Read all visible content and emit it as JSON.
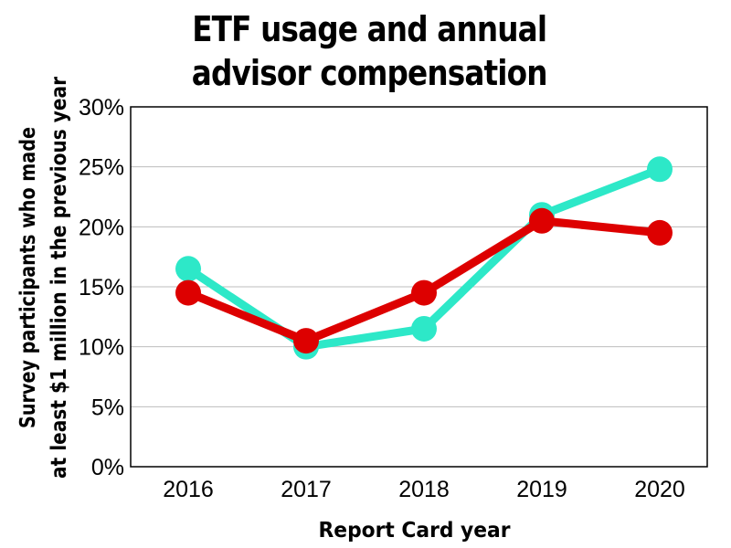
{
  "chart_data": {
    "type": "line",
    "title_lines": [
      "ETF usage and annual",
      "advisor compensation"
    ],
    "xlabel": "Report Card year",
    "ylabel_lines": [
      "Survey participants who made",
      "at least $1 million in the previous year"
    ],
    "categories": [
      "2016",
      "2017",
      "2018",
      "2019",
      "2020"
    ],
    "ylim": [
      0,
      30
    ],
    "yticks": [
      0,
      5,
      10,
      15,
      20,
      25,
      30
    ],
    "ytick_labels": [
      "0%",
      "5%",
      "10%",
      "15%",
      "20%",
      "25%",
      "30%"
    ],
    "grid": true,
    "legend": "none",
    "series": [
      {
        "color": "#2de8c8",
        "values": [
          16.5,
          10.0,
          11.5,
          21.0,
          24.8
        ]
      },
      {
        "color": "#dd0000",
        "values": [
          14.5,
          10.5,
          14.5,
          20.5,
          19.5
        ]
      }
    ]
  }
}
